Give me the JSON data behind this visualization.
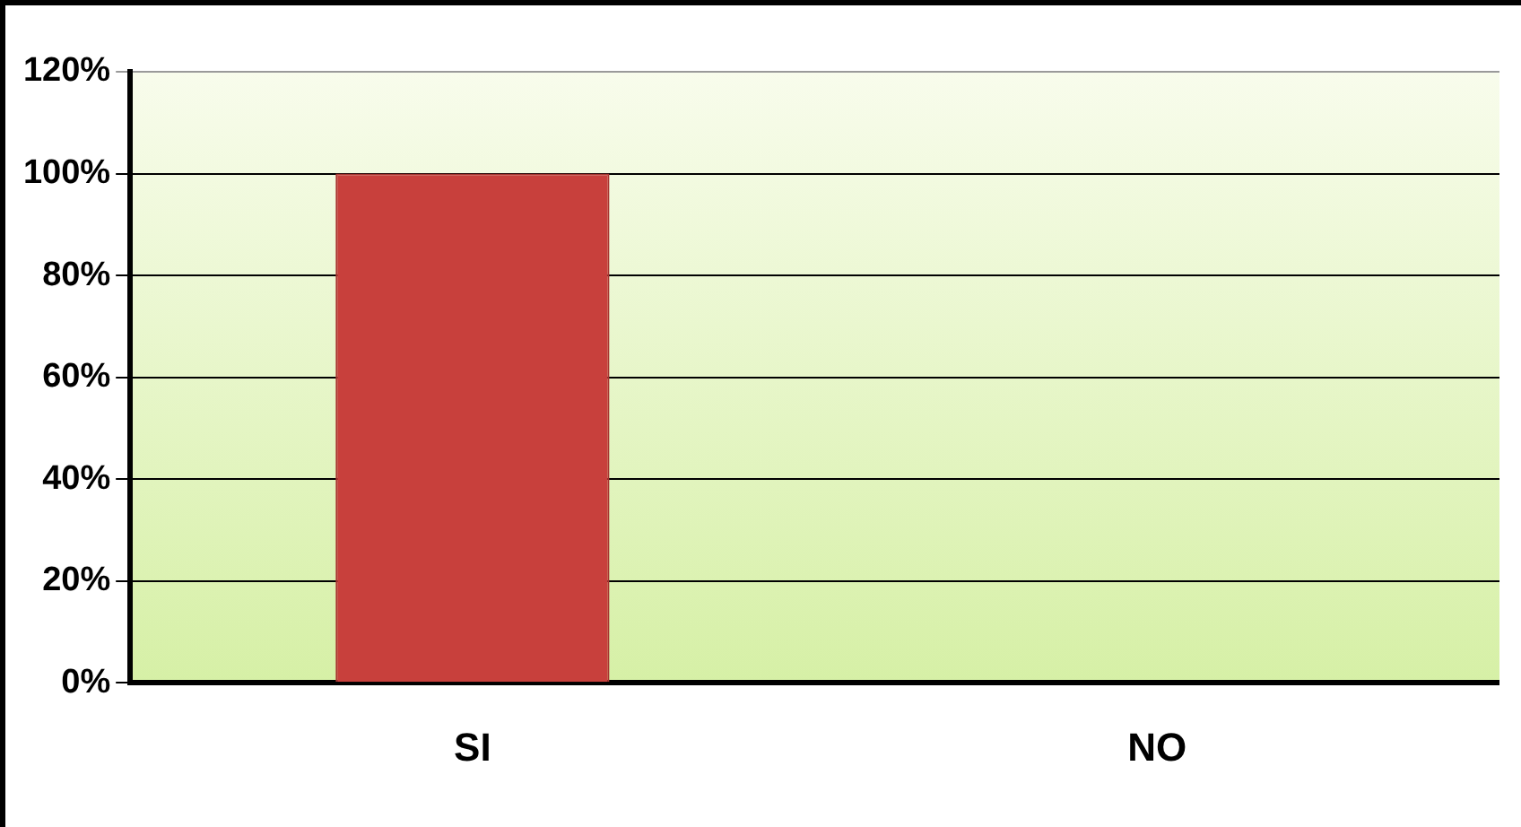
{
  "chart_data": {
    "type": "bar",
    "categories": [
      "SI",
      "NO"
    ],
    "series": [
      {
        "color": "#c8403c",
        "values": [
          100,
          0
        ]
      }
    ],
    "ylim": [
      0,
      120
    ],
    "yticks": [
      {
        "value": 0,
        "label": "0%"
      },
      {
        "value": 20,
        "label": "20%"
      },
      {
        "value": 40,
        "label": "40%"
      },
      {
        "value": 60,
        "label": "60%"
      },
      {
        "value": 80,
        "label": "80%"
      },
      {
        "value": 100,
        "label": "100%"
      },
      {
        "value": 120,
        "label": "120%"
      }
    ],
    "grid": "y",
    "legend": false
  }
}
